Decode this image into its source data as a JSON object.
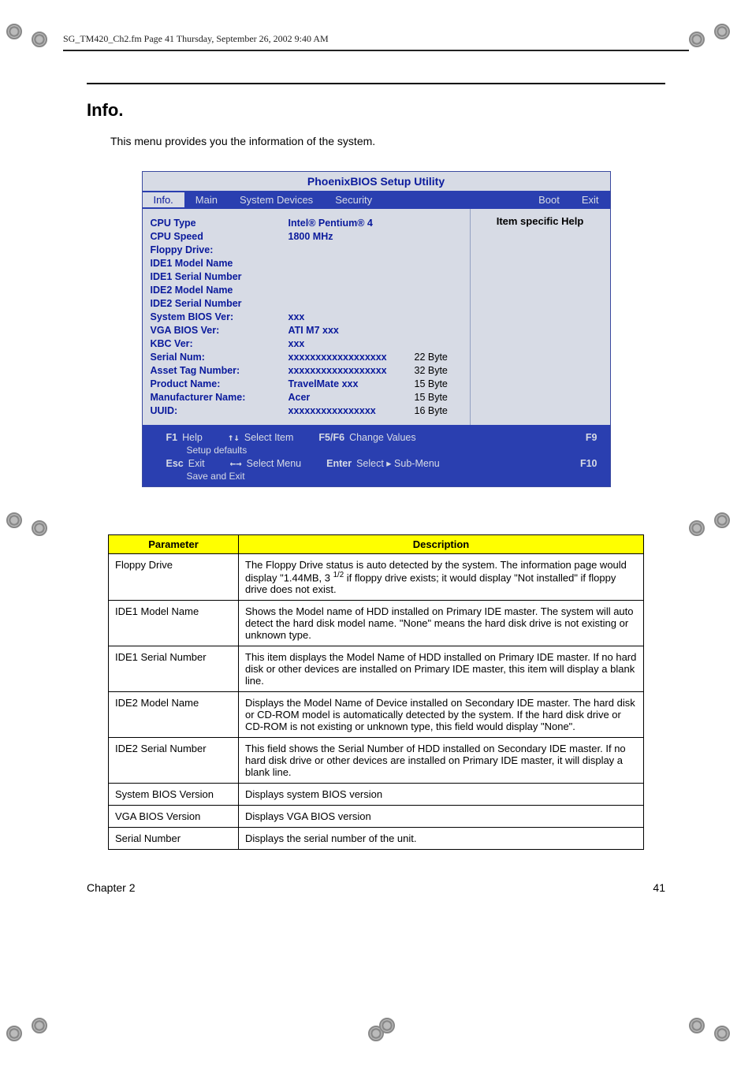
{
  "meta_header": "SG_TM420_Ch2.fm  Page 41  Thursday, September 26, 2002  9:40 AM",
  "section_title": "Info.",
  "intro_text": "This menu provides you the information of the system.",
  "bios": {
    "title": "PhoenixBIOS Setup Utility",
    "menu": {
      "info": "Info.",
      "main": "Main",
      "system_devices": "System Devices",
      "security": "Security",
      "boot": "Boot",
      "exit": "Exit"
    },
    "help_header": "Item specific Help",
    "rows": {
      "cpu_type": {
        "label": "CPU Type",
        "value": "Intel® Pentium® 4",
        "note": ""
      },
      "cpu_speed": {
        "label": "CPU Speed",
        "value": "1800 MHz",
        "note": ""
      },
      "floppy": {
        "label": "Floppy Drive:",
        "value": "",
        "note": ""
      },
      "ide1_model": {
        "label": "IDE1 Model Name",
        "value": "",
        "note": ""
      },
      "ide1_serial": {
        "label": "IDE1 Serial Number",
        "value": "",
        "note": ""
      },
      "ide2_model": {
        "label": "IDE2 Model Name",
        "value": "",
        "note": ""
      },
      "ide2_serial": {
        "label": "IDE2 Serial Number",
        "value": "",
        "note": ""
      },
      "sys_bios": {
        "label": "System BIOS Ver:",
        "value": "xxx",
        "note": ""
      },
      "vga_bios": {
        "label": "VGA BIOS Ver:",
        "value": "ATI M7 xxx",
        "note": ""
      },
      "kbc": {
        "label": "KBC Ver:",
        "value": "xxx",
        "note": ""
      },
      "serial_num": {
        "label": "Serial Num:",
        "value": "xxxxxxxxxxxxxxxxxx",
        "note": "22 Byte"
      },
      "asset_tag": {
        "label": "Asset Tag Number:",
        "value": "xxxxxxxxxxxxxxxxxx",
        "note": "32 Byte"
      },
      "product": {
        "label": "Product Name:",
        "value": "TravelMate xxx",
        "note": "15 Byte"
      },
      "manufacturer": {
        "label": "Manufacturer Name:",
        "value": "Acer",
        "note": "15 Byte"
      },
      "uuid": {
        "label": "UUID:",
        "value": "xxxxxxxxxxxxxxxx",
        "note": "16 Byte"
      }
    },
    "footer": {
      "f1": "F1",
      "help": "Help",
      "updown": "↑↓",
      "select_item": "Select Item",
      "f5f6": "F5/F6",
      "change_values": "Change Values",
      "f9": "F9",
      "setup_defaults": "Setup defaults",
      "esc": "Esc",
      "exit": "Exit",
      "lr": "←→",
      "select_menu": "Select Menu",
      "enter": "Enter",
      "select_sub": "Select ▸ Sub-Menu",
      "f10": "F10",
      "save_exit": "Save and Exit"
    }
  },
  "table": {
    "headers": {
      "param": "Parameter",
      "desc": "Description"
    },
    "rows": [
      {
        "param": "Floppy Drive",
        "desc": "The Floppy Drive status is auto detected by the system. The information page would display \"1.44MB, 3 1/2 if floppy drive exists; it would display \"Not installed\" if floppy drive does not exist."
      },
      {
        "param": "IDE1 Model Name",
        "desc": "Shows the Model name of HDD installed on Primary IDE master. The system will auto detect the hard disk model name. \"None\" means the hard disk drive is not existing or unknown type."
      },
      {
        "param": "IDE1 Serial Number",
        "desc": "This item displays the Model Name of HDD installed on Primary IDE master. If no hard disk or other devices are installed on Primary IDE master, this item will display a blank line."
      },
      {
        "param": "IDE2 Model Name",
        "desc": "Displays the Model Name of Device installed on Secondary IDE master. The hard disk or CD-ROM model is automatically detected by the system. If the hard disk drive or CD-ROM is not existing or unknown type, this field would display \"None\"."
      },
      {
        "param": "IDE2 Serial Number",
        "desc": "This field shows the Serial Number of HDD installed on Secondary IDE master. If no hard disk drive or other devices are installed on Primary IDE master, it will display a blank line."
      },
      {
        "param": "System BIOS Version",
        "desc": "Displays system BIOS version"
      },
      {
        "param": "VGA BIOS Version",
        "desc": "Displays VGA BIOS version"
      },
      {
        "param": "Serial Number",
        "desc": "Displays the serial number of the unit."
      }
    ]
  },
  "footer": {
    "chapter": "Chapter 2",
    "page": "41"
  },
  "colors": {
    "bios_blue": "#2a3fb0",
    "bios_text": "#0a1a9c",
    "bios_bg": "#d7dbe5",
    "table_header_bg": "#ffff00"
  }
}
